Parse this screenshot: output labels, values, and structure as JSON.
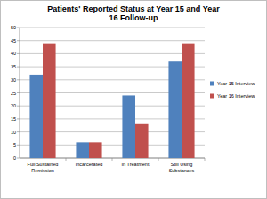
{
  "chart_data": {
    "type": "bar",
    "title": "Patients' Reported Status at Year 15 and Year 16 Follow-up",
    "categories": [
      "Full Sustained Remission",
      "Incarcerated",
      "In Treatment",
      "Still Using Substances"
    ],
    "series": [
      {
        "name": "Year 15 Interview",
        "color": "#4f81bd",
        "values": [
          32,
          6,
          24,
          37
        ]
      },
      {
        "name": "Year 16 Interview",
        "color": "#c0504d",
        "values": [
          44,
          6,
          13,
          44
        ]
      }
    ],
    "ylim": [
      0,
      50
    ],
    "yticks": [
      0,
      5,
      10,
      15,
      20,
      25,
      30,
      35,
      40,
      45,
      50
    ],
    "grid": true,
    "legend": "right"
  }
}
